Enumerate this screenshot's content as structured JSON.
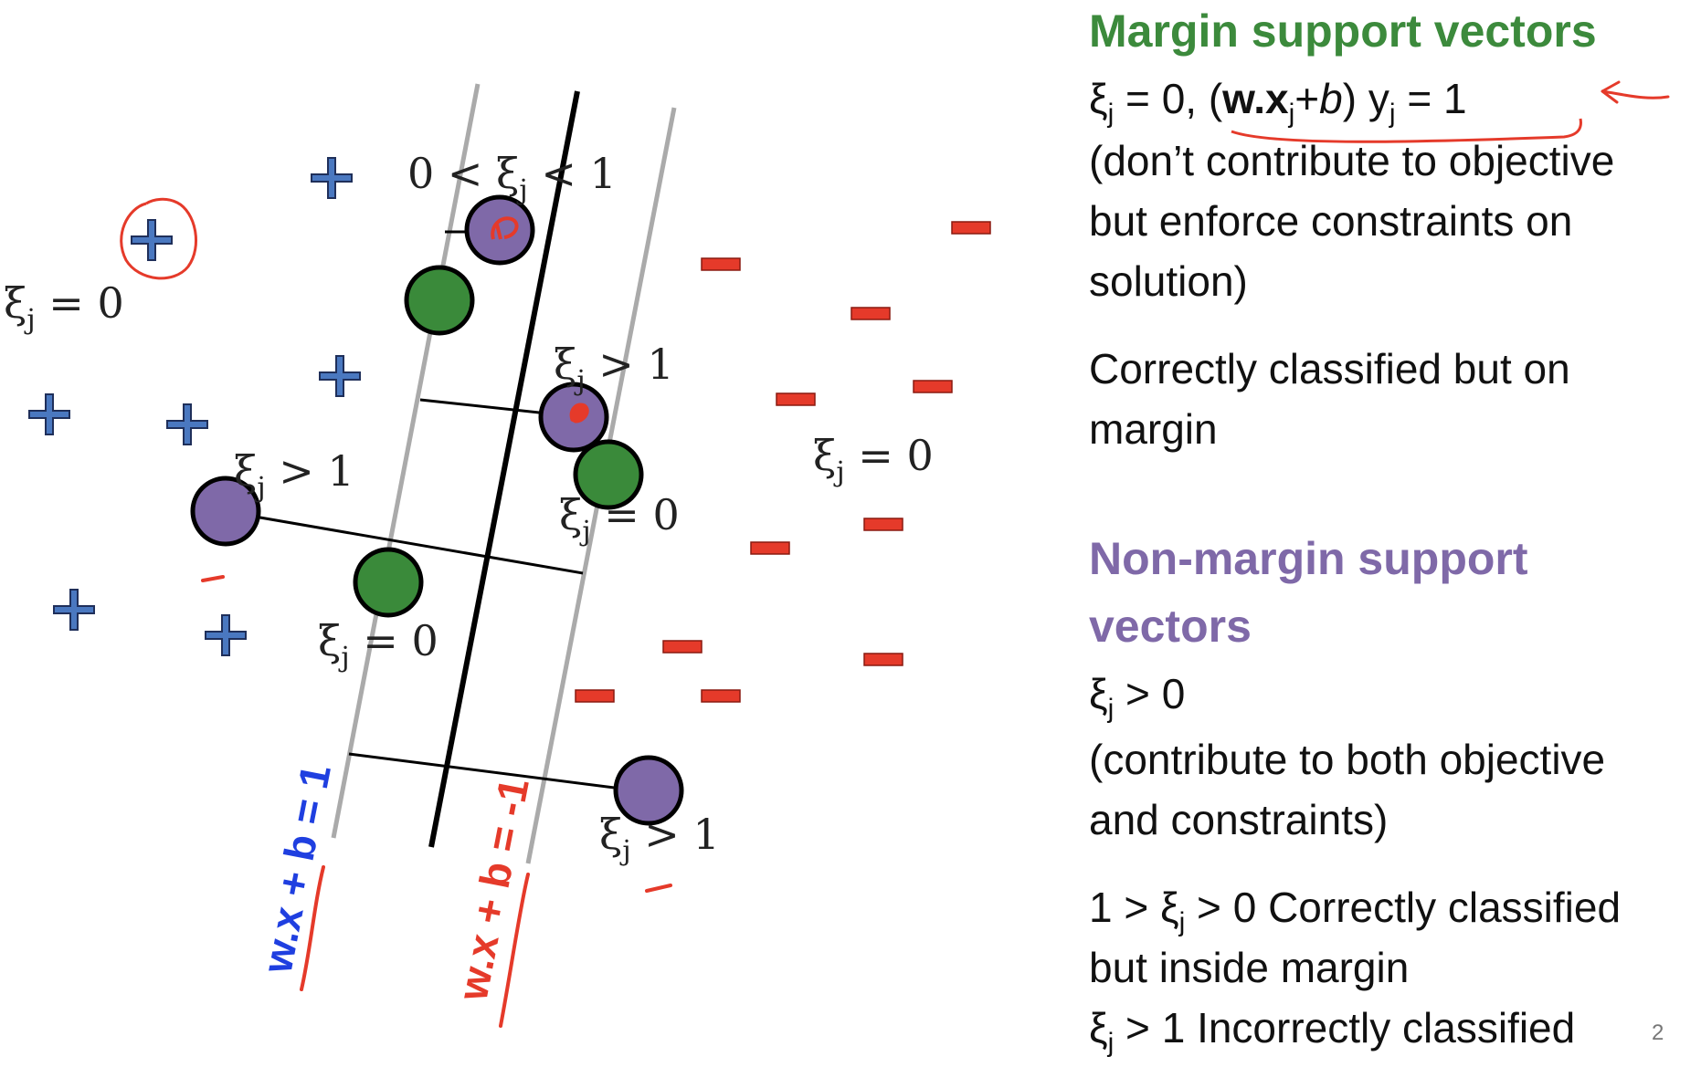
{
  "diagram": {
    "labels": {
      "margin_pos": "w.x + b = 1",
      "margin_neg": "w.x + b = -1",
      "xi_between": "0 < ξ",
      "xi_between_sub": "j",
      "xi_between_tail": " < 1",
      "xi_zero": "ξ",
      "xi_sub": "j",
      "xi_zero_tail": " = 0",
      "xi_gt_tail": " > 1"
    },
    "colors": {
      "plus": "#4a78c0",
      "minus": "#e53a2a",
      "margin_sv": "#3a8a3a",
      "nonmargin_sv": "#7f69a8",
      "boundary": "#000000",
      "margin_line": "#aaaaaa",
      "annotation": "#e53a2a",
      "label_pos": "#1f3fe0",
      "label_neg": "#e53a2a"
    }
  },
  "panel": {
    "margin_title": "Margin support vectors",
    "margin_eq": {
      "xi": "ξ",
      "sub_j": "j",
      "eq0": " = 0,  (",
      "w": "w",
      "dot": ".",
      "x": "x",
      "plus": "+",
      "b": "b",
      "close": ") y",
      "eq1": " = 1"
    },
    "margin_desc": [
      "(don’t contribute to objective",
      "but enforce constraints on",
      "solution)"
    ],
    "margin_note": [
      "Correctly classified but on",
      "margin"
    ],
    "nonmargin_title": [
      "Non-margin support",
      "vectors"
    ],
    "nonmargin_eq": {
      "xi": "ξ",
      "sub_j": "j",
      "rest": " > 0"
    },
    "nonmargin_desc": [
      "(contribute to both objective",
      "and constraints)"
    ],
    "case1": {
      "pre": "1 > ξ",
      "sub_j": "j",
      "post": " > 0   Correctly classified",
      "line2": "but inside margin"
    },
    "case2": {
      "xi": "ξ",
      "sub_j": "j",
      "post": " > 1 Incorrectly classified"
    },
    "page_number": "2"
  }
}
